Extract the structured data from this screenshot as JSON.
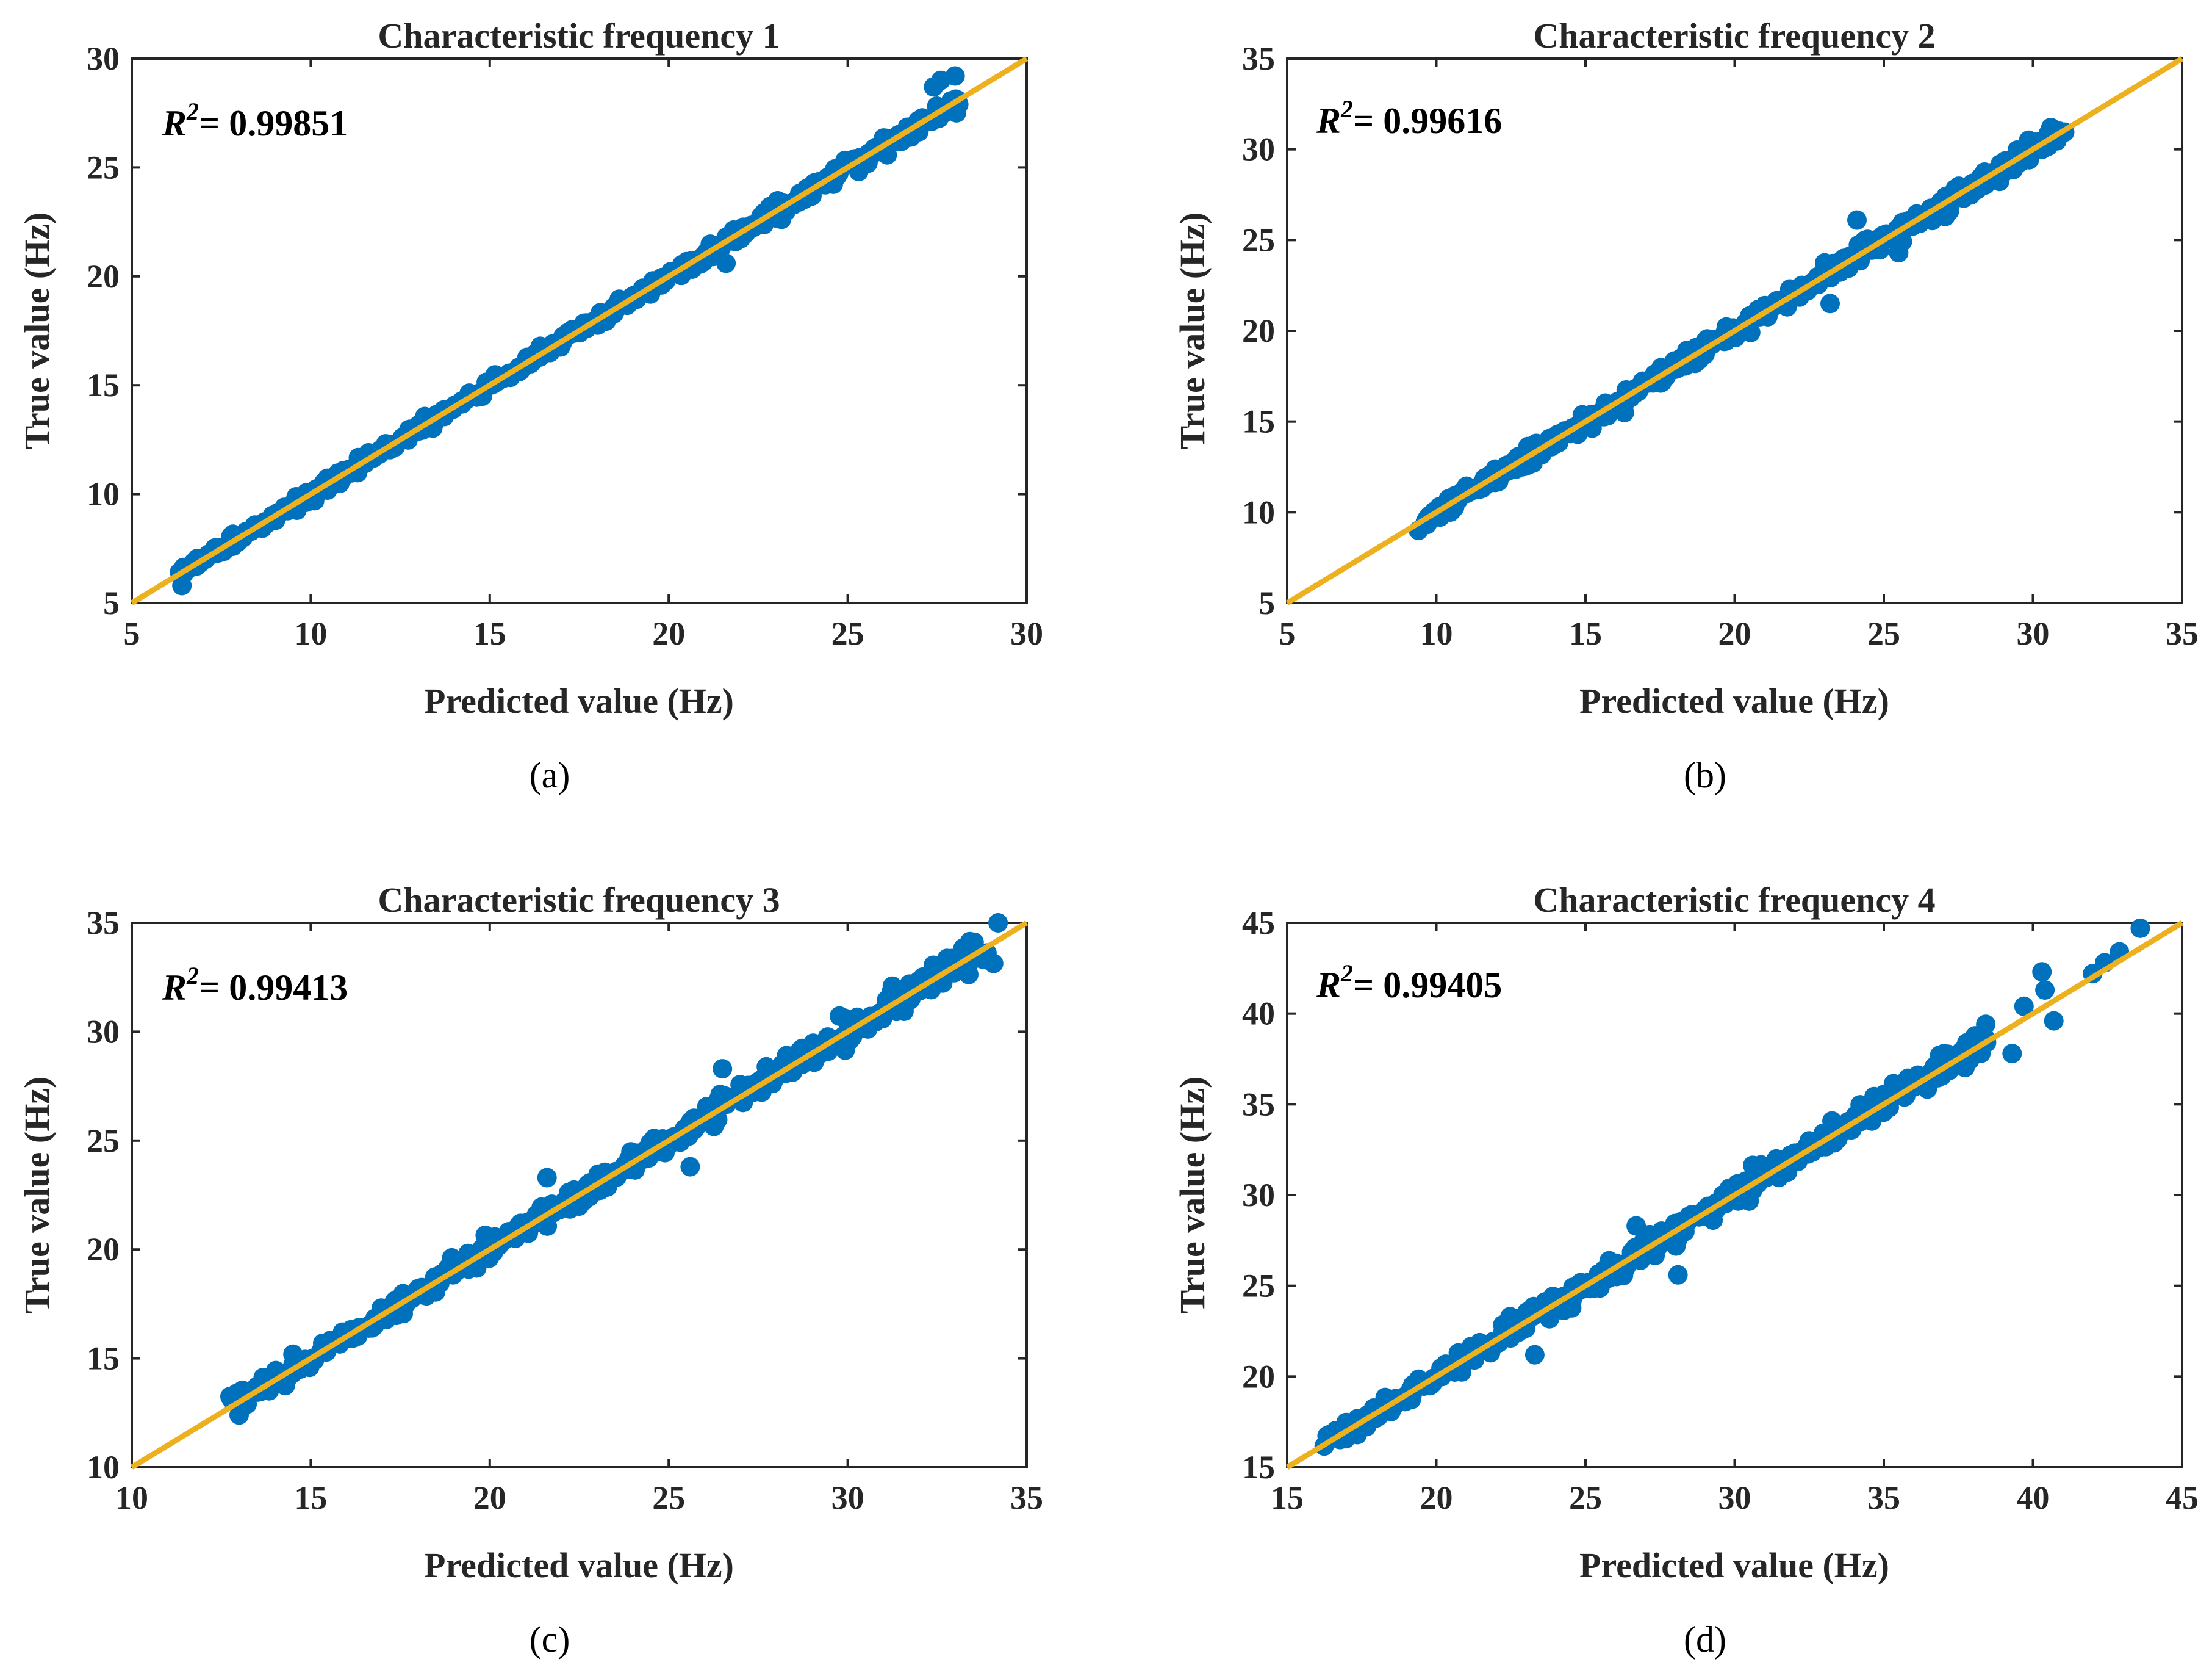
{
  "colors": {
    "points": "#0072BD",
    "fit_line": "#EDB120",
    "axes": "#262626"
  },
  "chart_data": [
    {
      "type": "scatter",
      "caption": "(a)",
      "title": "Characteristic frequency 1",
      "xlabel": "Predicted value (Hz)",
      "ylabel": "True value (Hz)",
      "xlim": [
        5,
        30
      ],
      "ylim": [
        5,
        30
      ],
      "xticks": [
        "5",
        "10",
        "15",
        "20",
        "25",
        "30"
      ],
      "yticks": [
        "5",
        "10",
        "15",
        "20",
        "25",
        "30"
      ],
      "r2_label": "R",
      "r2_sup": "2",
      "r2_value": "= 0.99851",
      "fit_line": {
        "x": [
          5,
          30
        ],
        "y": [
          5,
          30
        ]
      },
      "points": {
        "range": [
          6.3,
          28.1
        ],
        "spread": 0.18,
        "count": 380,
        "outliers": [
          [
            21.6,
            20.6
          ],
          [
            27.4,
            28.7
          ],
          [
            27.6,
            29.0
          ],
          [
            28.0,
            29.2
          ],
          [
            6.4,
            5.8
          ],
          [
            26.5,
            26.2
          ]
        ]
      }
    },
    {
      "type": "scatter",
      "caption": "(b)",
      "title": "Characteristic frequency 2",
      "xlabel": "Predicted value (Hz)",
      "ylabel": "True value (Hz)",
      "xlim": [
        5,
        35
      ],
      "ylim": [
        5,
        35
      ],
      "xticks": [
        "5",
        "10",
        "15",
        "20",
        "25",
        "30",
        "35"
      ],
      "yticks": [
        "5",
        "10",
        "15",
        "20",
        "25",
        "30",
        "35"
      ],
      "r2_label": "R",
      "r2_sup": "2",
      "r2_value": "= 0.99616",
      "fit_line": {
        "x": [
          5,
          35
        ],
        "y": [
          5,
          35
        ]
      },
      "points": {
        "range": [
          9.5,
          31.0
        ],
        "spread": 0.28,
        "count": 380,
        "outliers": [
          [
            24.1,
            26.1
          ],
          [
            23.2,
            21.5
          ],
          [
            27.2,
            26.6
          ],
          [
            9.4,
            9.0
          ],
          [
            30.6,
            31.2
          ],
          [
            25.5,
            24.3
          ]
        ]
      }
    },
    {
      "type": "scatter",
      "caption": "(c)",
      "title": "Characteristic frequency 3",
      "xlabel": "Predicted value (Hz)",
      "ylabel": "True value (Hz)",
      "xlim": [
        10,
        35
      ],
      "ylim": [
        10,
        35
      ],
      "xticks": [
        "10",
        "15",
        "20",
        "25",
        "30",
        "35"
      ],
      "yticks": [
        "10",
        "15",
        "20",
        "25",
        "30",
        "35"
      ],
      "r2_label": "R",
      "r2_sup": "2",
      "r2_value": "= 0.99413",
      "fit_line": {
        "x": [
          10,
          35
        ],
        "y": [
          10,
          35
        ]
      },
      "points": {
        "range": [
          12.9,
          33.8
        ],
        "spread": 0.32,
        "count": 400,
        "outliers": [
          [
            34.2,
            35.0
          ],
          [
            33.9,
            33.3
          ],
          [
            25.6,
            23.8
          ],
          [
            21.6,
            23.3
          ],
          [
            26.5,
            28.3
          ],
          [
            13.0,
            12.4
          ]
        ]
      }
    },
    {
      "type": "scatter",
      "caption": "(d)",
      "title": "Characteristic frequency 4",
      "xlabel": "Predicted value (Hz)",
      "ylabel": "True value (Hz)",
      "xlim": [
        15,
        45
      ],
      "ylim": [
        15,
        45
      ],
      "xticks": [
        "15",
        "20",
        "25",
        "30",
        "35",
        "40",
        "45"
      ],
      "yticks": [
        "15",
        "20",
        "25",
        "30",
        "35",
        "40",
        "45"
      ],
      "r2_label": "R",
      "r2_sup": "2",
      "r2_value": "= 0.99405",
      "fit_line": {
        "x": [
          15,
          45
        ],
        "y": [
          15,
          45
        ]
      },
      "points": {
        "range": [
          16.3,
          38.5
        ],
        "spread": 0.35,
        "count": 400,
        "outliers": [
          [
            43.6,
            44.7
          ],
          [
            42.4,
            42.8
          ],
          [
            40.3,
            42.3
          ],
          [
            40.4,
            41.3
          ],
          [
            39.7,
            40.4
          ],
          [
            40.7,
            39.6
          ],
          [
            39.3,
            37.8
          ],
          [
            23.3,
            21.2
          ],
          [
            28.1,
            25.6
          ],
          [
            26.7,
            28.3
          ],
          [
            42.0,
            42.2
          ],
          [
            42.9,
            43.4
          ]
        ]
      }
    }
  ]
}
